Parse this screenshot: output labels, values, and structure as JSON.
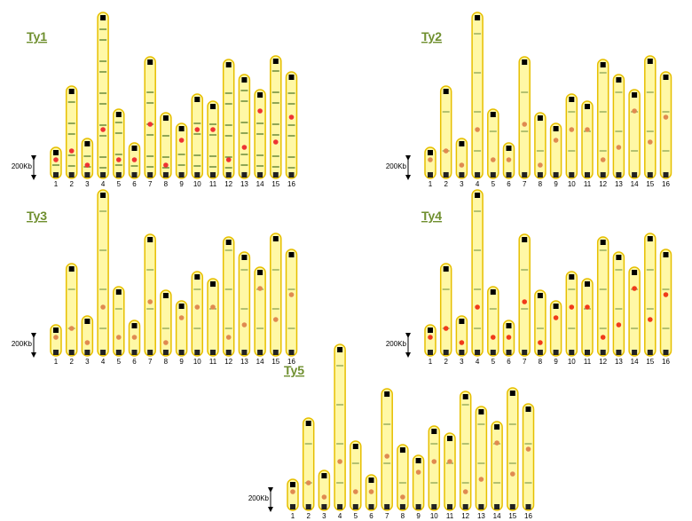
{
  "panels": [
    {
      "title": "Ty1",
      "scale_label": "200Kb",
      "chromosomes": [
        "1",
        "2",
        "3",
        "4",
        "5",
        "6",
        "7",
        "8",
        "9",
        "10",
        "11",
        "12",
        "13",
        "14",
        "15",
        "16"
      ]
    },
    {
      "title": "Ty2",
      "scale_label": "200Kb",
      "chromosomes": [
        "1",
        "2",
        "3",
        "4",
        "5",
        "6",
        "7",
        "8",
        "9",
        "10",
        "11",
        "12",
        "13",
        "14",
        "15",
        "16"
      ]
    },
    {
      "title": "Ty3",
      "scale_label": "200Kb",
      "chromosomes": [
        "1",
        "2",
        "3",
        "4",
        "5",
        "6",
        "7",
        "8",
        "9",
        "10",
        "11",
        "12",
        "13",
        "14",
        "15",
        "16"
      ]
    },
    {
      "title": "Ty4",
      "scale_label": "200Kb",
      "chromosomes": [
        "1",
        "2",
        "3",
        "4",
        "5",
        "6",
        "7",
        "8",
        "9",
        "10",
        "11",
        "12",
        "13",
        "14",
        "15",
        "16"
      ]
    },
    {
      "title": "Ty5",
      "scale_label": "200Kb",
      "chromosomes": [
        "1",
        "2",
        "3",
        "4",
        "5",
        "6",
        "7",
        "8",
        "9",
        "10",
        "11",
        "12",
        "13",
        "14",
        "15",
        "16"
      ]
    }
  ]
}
